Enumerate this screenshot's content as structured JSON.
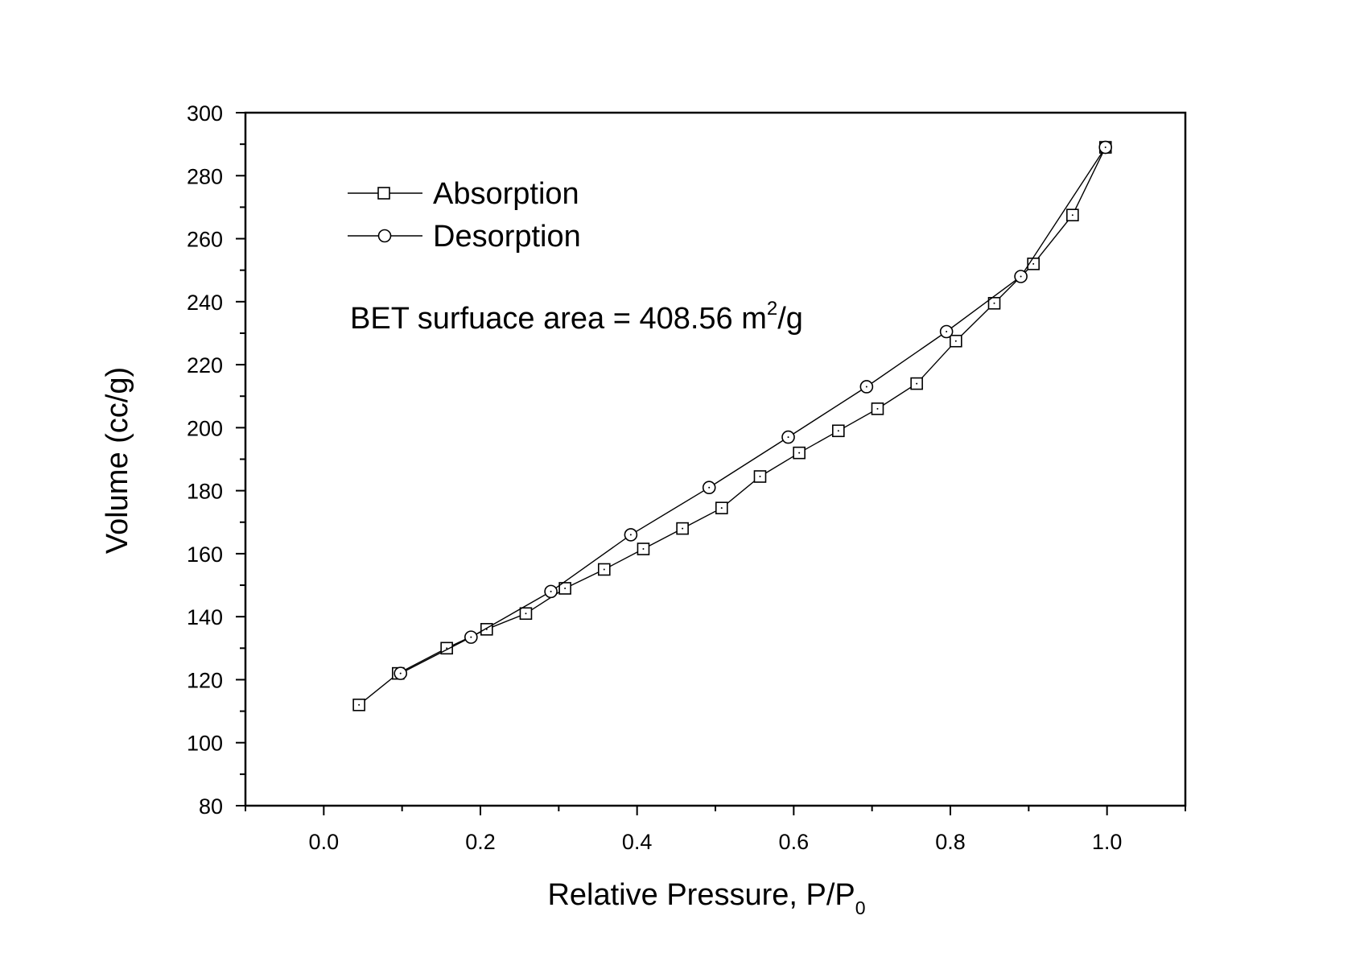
{
  "chart_data": {
    "type": "line",
    "xlabel": "Relative Pressure, P/P",
    "xlabel_sub": "0",
    "ylabel": "Volume (cc/g)",
    "xlim": [
      -0.1,
      1.1
    ],
    "ylim": [
      80,
      300
    ],
    "xticks": [
      0.0,
      0.2,
      0.4,
      0.6,
      0.8,
      1.0
    ],
    "xtick_labels": [
      "0.0",
      "0.2",
      "0.4",
      "0.6",
      "0.8",
      "1.0"
    ],
    "yticks": [
      80,
      100,
      120,
      140,
      160,
      180,
      200,
      220,
      240,
      260,
      280,
      300
    ],
    "ytick_labels": [
      "80",
      "100",
      "120",
      "140",
      "160",
      "180",
      "200",
      "220",
      "240",
      "260",
      "280",
      "300"
    ],
    "grid": false,
    "legend_position": "top-left",
    "annotation": {
      "text": "BET surfuace area = 408.56 m",
      "sup": "2",
      "tail": "/g"
    },
    "series": [
      {
        "name": "Absorption",
        "marker": "square",
        "x": [
          0.045,
          0.095,
          0.157,
          0.208,
          0.258,
          0.308,
          0.358,
          0.408,
          0.458,
          0.508,
          0.557,
          0.607,
          0.657,
          0.707,
          0.757,
          0.807,
          0.856,
          0.906,
          0.956,
          0.998
        ],
        "y": [
          112,
          122,
          130,
          136,
          141,
          149,
          155,
          161.5,
          168,
          174.5,
          184.5,
          192,
          199,
          206,
          214,
          227.5,
          239.5,
          252,
          267.5,
          289
        ]
      },
      {
        "name": "Desorption",
        "marker": "circle",
        "x": [
          0.998,
          0.89,
          0.795,
          0.693,
          0.593,
          0.492,
          0.392,
          0.29,
          0.188,
          0.098
        ],
        "y": [
          289,
          248,
          230.5,
          213,
          197,
          181,
          166,
          148,
          133.5,
          122
        ]
      }
    ]
  }
}
